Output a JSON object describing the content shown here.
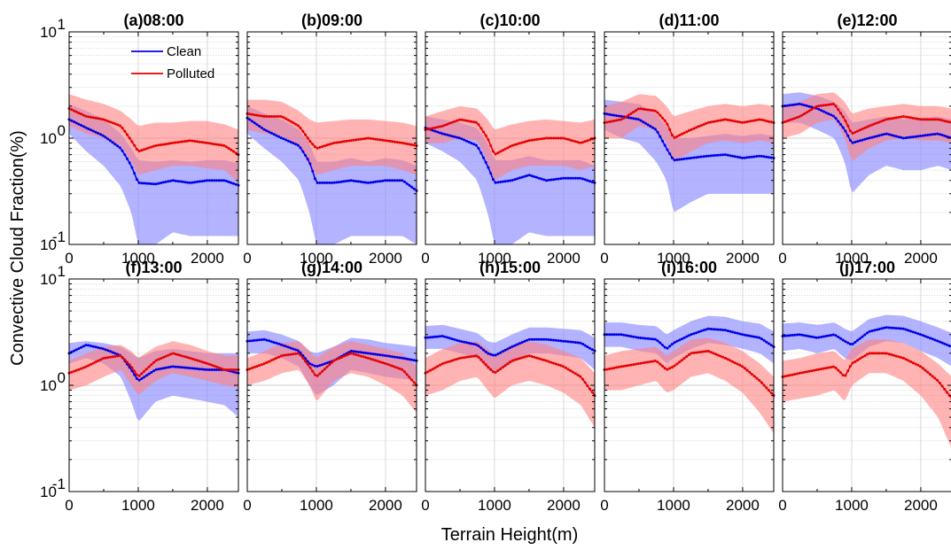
{
  "figure": {
    "ylabel": "Convective Cloud Fraction(%)",
    "xlabel": "Terrain Height(m)",
    "y_tick_labels": [
      {
        "base": "10",
        "exp": "1"
      },
      {
        "base": "10",
        "exp": "0"
      },
      {
        "base": "10",
        "exp": "-1"
      }
    ],
    "x_tick_labels": [
      "0",
      "1000",
      "2000"
    ],
    "legend": [
      "Clean",
      "Polluted"
    ]
  },
  "chart_data": {
    "type": "line",
    "layout": "2x5 small multiples",
    "xlim": [
      0,
      2450
    ],
    "ylim": [
      0.1,
      10
    ],
    "yscale": "log",
    "grid": true,
    "legend_placement": "top-center of panel (a)",
    "colors": {
      "Clean": "#0000e6",
      "Polluted": "#e60000",
      "Clean_band": "#8080ff",
      "Polluted_band": "#ff8080"
    },
    "x": [
      0,
      250,
      500,
      750,
      900,
      1000,
      1250,
      1500,
      1750,
      2000,
      2250,
      2450
    ],
    "panels": [
      {
        "title": "(a)08:00",
        "series": [
          {
            "name": "Clean",
            "values": [
              1.5,
              1.25,
              1.05,
              0.8,
              0.55,
              0.38,
              0.37,
              0.4,
              0.38,
              0.4,
              0.4,
              0.36
            ],
            "band_upper": [
              2.1,
              1.8,
              1.5,
              1.1,
              0.8,
              0.62,
              0.6,
              0.62,
              0.6,
              0.62,
              0.62,
              0.58
            ],
            "band_lower": [
              1.1,
              0.75,
              0.55,
              0.35,
              0.2,
              0.1,
              0.1,
              0.13,
              0.12,
              0.12,
              0.12,
              0.12
            ]
          },
          {
            "name": "Polluted",
            "values": [
              1.9,
              1.6,
              1.5,
              1.3,
              0.95,
              0.75,
              0.85,
              0.9,
              0.95,
              0.9,
              0.85,
              0.7
            ],
            "band_upper": [
              2.6,
              2.3,
              2.1,
              1.8,
              1.5,
              1.3,
              1.4,
              1.4,
              1.45,
              1.45,
              1.35,
              1.2
            ],
            "band_lower": [
              1.3,
              1.1,
              1.0,
              0.85,
              0.6,
              0.45,
              0.5,
              0.55,
              0.55,
              0.52,
              0.5,
              0.38
            ]
          }
        ]
      },
      {
        "title": "(b)09:00",
        "series": [
          {
            "name": "Clean",
            "values": [
              1.55,
              1.2,
              1.0,
              0.85,
              0.6,
              0.38,
              0.38,
              0.4,
              0.38,
              0.4,
              0.4,
              0.32
            ],
            "band_upper": [
              2.0,
              1.7,
              1.5,
              1.2,
              0.9,
              0.6,
              0.6,
              0.65,
              0.6,
              0.65,
              0.62,
              0.55
            ],
            "band_lower": [
              1.1,
              0.8,
              0.6,
              0.4,
              0.2,
              0.1,
              0.1,
              0.12,
              0.12,
              0.12,
              0.12,
              0.1
            ]
          },
          {
            "name": "Polluted",
            "values": [
              1.7,
              1.6,
              1.6,
              1.3,
              0.95,
              0.8,
              0.9,
              0.95,
              1.0,
              0.95,
              0.9,
              0.85
            ],
            "band_upper": [
              2.3,
              2.3,
              2.2,
              1.8,
              1.5,
              1.4,
              1.45,
              1.5,
              1.5,
              1.45,
              1.4,
              1.3
            ],
            "band_lower": [
              1.2,
              1.1,
              1.05,
              0.85,
              0.55,
              0.45,
              0.5,
              0.55,
              0.55,
              0.55,
              0.5,
              0.45
            ]
          }
        ]
      },
      {
        "title": "(c)10:00",
        "series": [
          {
            "name": "Clean",
            "values": [
              1.25,
              1.1,
              1.0,
              0.85,
              0.55,
              0.38,
              0.4,
              0.45,
              0.4,
              0.42,
              0.42,
              0.38
            ],
            "band_upper": [
              1.6,
              1.5,
              1.4,
              1.25,
              0.9,
              0.62,
              0.62,
              0.68,
              0.62,
              0.62,
              0.62,
              0.55
            ],
            "band_lower": [
              0.9,
              0.75,
              0.6,
              0.4,
              0.2,
              0.1,
              0.1,
              0.13,
              0.12,
              0.12,
              0.12,
              0.12
            ]
          },
          {
            "name": "Polluted",
            "values": [
              1.2,
              1.3,
              1.5,
              1.4,
              1.0,
              0.7,
              0.85,
              0.95,
              1.0,
              1.0,
              0.9,
              1.0
            ],
            "band_upper": [
              1.6,
              1.8,
              2.0,
              1.9,
              1.5,
              1.2,
              1.35,
              1.45,
              1.5,
              1.45,
              1.4,
              1.5
            ],
            "band_lower": [
              0.9,
              0.9,
              1.0,
              0.95,
              0.6,
              0.4,
              0.5,
              0.55,
              0.55,
              0.55,
              0.5,
              0.55
            ]
          }
        ]
      },
      {
        "title": "(d)11:00",
        "series": [
          {
            "name": "Clean",
            "values": [
              1.7,
              1.6,
              1.5,
              1.2,
              0.8,
              0.62,
              0.65,
              0.68,
              0.7,
              0.65,
              0.68,
              0.65
            ],
            "band_upper": [
              2.3,
              2.2,
              2.1,
              1.7,
              1.3,
              1.0,
              1.0,
              1.05,
              1.1,
              1.05,
              1.1,
              1.05
            ],
            "band_lower": [
              1.2,
              1.0,
              0.9,
              0.6,
              0.4,
              0.2,
              0.25,
              0.3,
              0.3,
              0.3,
              0.3,
              0.3
            ]
          },
          {
            "name": "Polluted",
            "values": [
              1.4,
              1.5,
              1.9,
              1.8,
              1.4,
              1.0,
              1.2,
              1.4,
              1.5,
              1.4,
              1.5,
              1.4
            ],
            "band_upper": [
              2.0,
              2.2,
              2.6,
              2.5,
              2.0,
              1.6,
              1.8,
              2.0,
              2.1,
              2.0,
              2.1,
              2.0
            ],
            "band_lower": [
              1.0,
              1.0,
              1.3,
              1.2,
              0.9,
              0.6,
              0.75,
              0.9,
              0.95,
              0.9,
              0.95,
              0.9
            ]
          }
        ]
      },
      {
        "title": "(e)12:00",
        "series": [
          {
            "name": "Clean",
            "values": [
              2.0,
              2.1,
              1.9,
              1.6,
              1.2,
              0.9,
              1.0,
              1.1,
              1.0,
              1.05,
              1.1,
              1.0
            ],
            "band_upper": [
              2.6,
              2.7,
              2.5,
              2.2,
              1.8,
              1.4,
              1.5,
              1.6,
              1.5,
              1.55,
              1.6,
              1.5
            ],
            "band_lower": [
              1.4,
              1.4,
              1.2,
              1.0,
              0.6,
              0.3,
              0.45,
              0.55,
              0.5,
              0.5,
              0.55,
              0.5
            ]
          },
          {
            "name": "Polluted",
            "values": [
              1.4,
              1.6,
              2.0,
              2.1,
              1.5,
              1.1,
              1.3,
              1.5,
              1.6,
              1.5,
              1.5,
              1.4
            ],
            "band_upper": [
              2.0,
              2.2,
              2.6,
              2.7,
              2.2,
              1.7,
              1.9,
              2.0,
              2.1,
              2.0,
              2.0,
              1.9
            ],
            "band_lower": [
              1.0,
              1.1,
              1.4,
              1.5,
              1.0,
              0.6,
              0.8,
              0.95,
              1.0,
              0.95,
              0.95,
              0.9
            ]
          }
        ]
      },
      {
        "title": "(f)13:00",
        "series": [
          {
            "name": "Clean",
            "values": [
              2.0,
              2.4,
              2.2,
              1.9,
              1.4,
              1.1,
              1.4,
              1.5,
              1.45,
              1.4,
              1.4,
              1.3
            ],
            "band_upper": [
              2.5,
              2.6,
              2.5,
              2.3,
              2.0,
              1.8,
              2.1,
              2.2,
              2.1,
              2.0,
              2.0,
              2.0
            ],
            "band_lower": [
              1.6,
              1.8,
              1.6,
              1.2,
              0.7,
              0.45,
              0.7,
              0.8,
              0.75,
              0.7,
              0.65,
              0.5
            ]
          },
          {
            "name": "Polluted",
            "values": [
              1.3,
              1.5,
              1.8,
              1.9,
              1.5,
              1.2,
              1.7,
              2.0,
              1.8,
              1.6,
              1.4,
              1.4
            ],
            "band_upper": [
              1.7,
              2.0,
              2.3,
              2.4,
              2.1,
              1.8,
              2.3,
              2.6,
              2.4,
              2.1,
              1.9,
              1.9
            ],
            "band_lower": [
              0.9,
              1.0,
              1.2,
              1.4,
              1.0,
              0.8,
              1.1,
              1.3,
              1.2,
              1.1,
              1.0,
              0.95
            ]
          }
        ]
      },
      {
        "title": "(g)14:00",
        "series": [
          {
            "name": "Clean",
            "values": [
              2.6,
              2.7,
              2.4,
              2.1,
              1.6,
              1.5,
              1.7,
              2.1,
              2.0,
              1.9,
              1.8,
              1.7
            ],
            "band_upper": [
              3.2,
              3.3,
              3.0,
              2.6,
              2.1,
              2.0,
              2.3,
              2.8,
              2.7,
              2.5,
              2.4,
              2.3
            ],
            "band_lower": [
              2.0,
              2.0,
              1.8,
              1.5,
              1.0,
              0.8,
              1.0,
              1.4,
              1.3,
              1.2,
              1.15,
              1.1
            ]
          },
          {
            "name": "Polluted",
            "values": [
              1.4,
              1.6,
              1.9,
              2.0,
              1.5,
              1.2,
              1.7,
              2.0,
              1.8,
              1.6,
              1.4,
              1.0
            ],
            "band_upper": [
              1.8,
              2.1,
              2.5,
              2.6,
              2.1,
              1.8,
              2.3,
              2.6,
              2.4,
              2.2,
              2.0,
              1.5
            ],
            "band_lower": [
              1.0,
              1.1,
              1.3,
              1.4,
              1.0,
              0.7,
              1.1,
              1.3,
              1.2,
              1.0,
              0.8,
              0.55
            ]
          }
        ]
      },
      {
        "title": "(h)15:00",
        "series": [
          {
            "name": "Clean",
            "values": [
              2.8,
              2.9,
              2.6,
              2.4,
              2.0,
              1.9,
              2.3,
              2.7,
              2.7,
              2.6,
              2.5,
              2.1
            ],
            "band_upper": [
              3.6,
              3.7,
              3.4,
              3.1,
              2.6,
              2.5,
              3.0,
              3.5,
              3.5,
              3.4,
              3.3,
              2.8
            ],
            "band_lower": [
              2.2,
              2.2,
              2.0,
              1.8,
              1.4,
              1.3,
              1.6,
              2.0,
              2.0,
              1.9,
              1.8,
              1.4
            ]
          },
          {
            "name": "Polluted",
            "values": [
              1.3,
              1.6,
              1.8,
              1.9,
              1.5,
              1.3,
              1.7,
              1.9,
              1.7,
              1.5,
              1.2,
              0.8
            ],
            "band_upper": [
              1.8,
              2.2,
              2.5,
              2.6,
              2.2,
              1.9,
              2.4,
              2.6,
              2.4,
              2.1,
              1.8,
              1.3
            ],
            "band_lower": [
              0.8,
              0.9,
              1.1,
              1.2,
              0.9,
              0.75,
              1.0,
              1.1,
              1.0,
              0.85,
              0.65,
              0.4
            ]
          }
        ]
      },
      {
        "title": "(i)16:00",
        "series": [
          {
            "name": "Clean",
            "values": [
              3.0,
              3.0,
              2.8,
              2.7,
              2.2,
              2.5,
              3.0,
              3.4,
              3.3,
              3.0,
              2.8,
              2.3
            ],
            "band_upper": [
              3.9,
              3.9,
              3.7,
              3.6,
              3.0,
              3.3,
              4.0,
              4.5,
              4.4,
              4.0,
              3.8,
              3.2
            ],
            "band_lower": [
              2.3,
              2.3,
              2.1,
              2.0,
              1.6,
              1.8,
              2.2,
              2.5,
              2.4,
              2.2,
              2.0,
              1.6
            ]
          },
          {
            "name": "Polluted",
            "values": [
              1.4,
              1.5,
              1.6,
              1.7,
              1.4,
              1.5,
              2.0,
              2.1,
              1.8,
              1.5,
              1.1,
              0.8
            ],
            "band_upper": [
              1.9,
              2.1,
              2.2,
              2.3,
              1.9,
              2.1,
              2.7,
              2.8,
              2.5,
              2.1,
              1.6,
              1.2
            ],
            "band_lower": [
              0.9,
              0.9,
              1.0,
              1.1,
              0.85,
              0.9,
              1.2,
              1.3,
              1.1,
              0.85,
              0.55,
              0.35
            ]
          }
        ]
      },
      {
        "title": "(j)17:00",
        "series": [
          {
            "name": "Clean",
            "values": [
              2.9,
              3.0,
              2.8,
              3.0,
              2.6,
              2.4,
              3.2,
              3.5,
              3.4,
              3.0,
              2.6,
              2.3
            ],
            "band_upper": [
              3.8,
              3.9,
              3.7,
              3.9,
              3.4,
              3.2,
              4.2,
              4.6,
              4.5,
              4.0,
              3.5,
              3.1
            ],
            "band_lower": [
              2.1,
              2.2,
              2.0,
              2.2,
              1.8,
              1.7,
              2.3,
              2.6,
              2.5,
              2.1,
              1.8,
              1.5
            ]
          },
          {
            "name": "Polluted",
            "values": [
              1.2,
              1.3,
              1.4,
              1.5,
              1.2,
              1.6,
              2.0,
              2.0,
              1.8,
              1.5,
              1.1,
              0.75
            ],
            "band_upper": [
              1.7,
              1.8,
              2.0,
              2.1,
              1.7,
              2.2,
              2.7,
              2.7,
              2.5,
              2.1,
              1.6,
              1.2
            ],
            "band_lower": [
              0.7,
              0.75,
              0.8,
              0.9,
              0.7,
              1.0,
              1.3,
              1.3,
              1.1,
              0.8,
              0.5,
              0.25
            ]
          }
        ]
      }
    ]
  }
}
